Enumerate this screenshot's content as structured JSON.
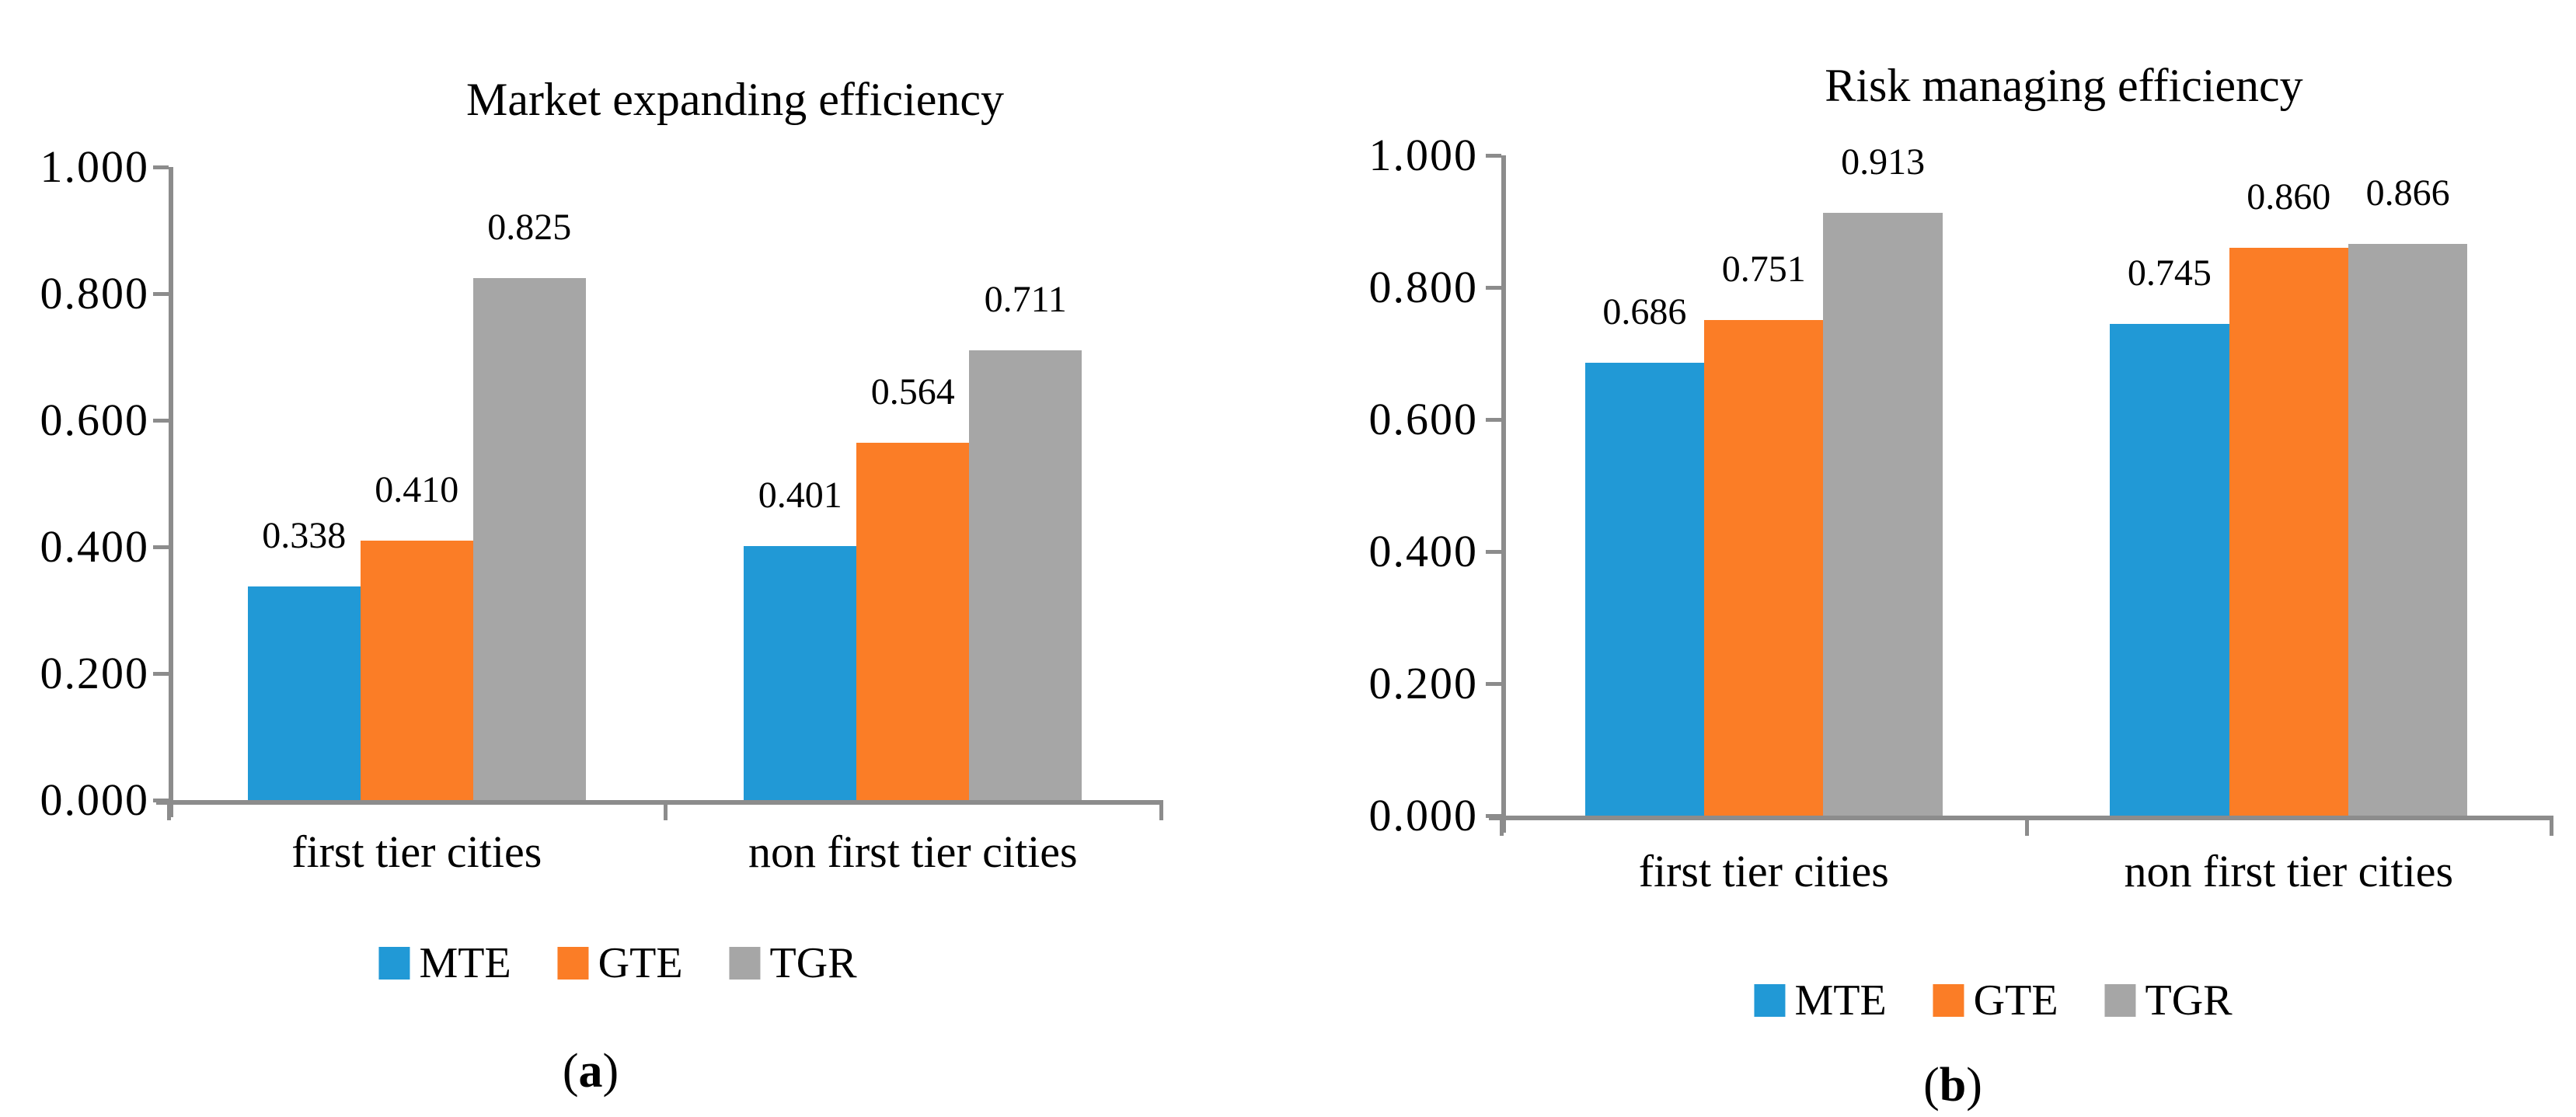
{
  "figure": {
    "background": "#ffffff",
    "axis_color": "#8c8c8c",
    "text_color": "#000000"
  },
  "chart_data": [
    {
      "type": "bar",
      "title": "Market expanding efficiency",
      "categories": [
        "first tier cities",
        "non first tier cities"
      ],
      "series": [
        {
          "name": "MTE",
          "color": "#2199d6",
          "values": [
            0.338,
            0.401
          ],
          "data_labels": [
            "0.338",
            "0.401"
          ]
        },
        {
          "name": "GTE",
          "color": "#fb7d26",
          "values": [
            0.41,
            0.564
          ],
          "data_labels": [
            "0.410",
            "0.564"
          ]
        },
        {
          "name": "TGR",
          "color": "#a6a6a6",
          "values": [
            0.825,
            0.711
          ],
          "data_labels": [
            "0.825",
            "0.711"
          ]
        }
      ],
      "y_tick_labels": [
        "0.000",
        "0.200",
        "0.400",
        "0.600",
        "0.800",
        "1.000"
      ],
      "ylim": [
        0,
        1
      ],
      "grid": false,
      "legend_position": "bottom",
      "caption": {
        "open": "(",
        "letter": "a",
        "close": ")"
      }
    },
    {
      "type": "bar",
      "title": "Risk managing efficiency",
      "categories": [
        "first tier cities",
        "non first tier cities"
      ],
      "series": [
        {
          "name": "MTE",
          "color": "#2199d6",
          "values": [
            0.686,
            0.745
          ],
          "data_labels": [
            "0.686",
            "0.745"
          ]
        },
        {
          "name": "GTE",
          "color": "#fb7d26",
          "values": [
            0.751,
            0.86
          ],
          "data_labels": [
            "0.751",
            "0.860"
          ]
        },
        {
          "name": "TGR",
          "color": "#a6a6a6",
          "values": [
            0.913,
            0.866
          ],
          "data_labels": [
            "0.913",
            "0.866"
          ]
        }
      ],
      "y_tick_labels": [
        "0.000",
        "0.200",
        "0.400",
        "0.600",
        "0.800",
        "1.000"
      ],
      "ylim": [
        0,
        1
      ],
      "grid": false,
      "legend_position": "bottom",
      "caption": {
        "open": "(",
        "letter": "b",
        "close": ")"
      }
    }
  ]
}
